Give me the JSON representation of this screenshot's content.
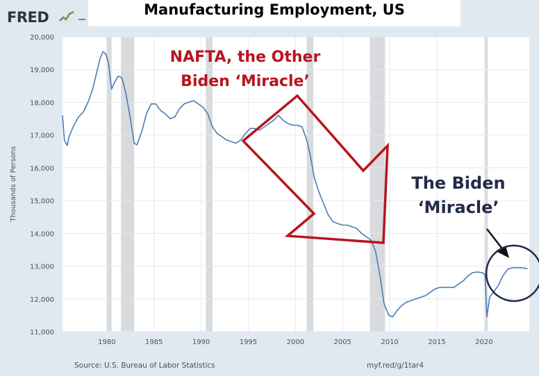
{
  "header": {
    "logo_text": "FRED",
    "title": "Manufacturing Employment, US"
  },
  "footer": {
    "source": "Source: U.S. Bureau of Labor Statistics",
    "link": "myf.red/g/1tar4"
  },
  "annotations": {
    "nafta_line1": "NAFTA, the Other",
    "nafta_line2": "Biden ‘Miracle’",
    "biden_line1": "The Biden",
    "biden_line2": "‘Miracle’"
  },
  "colors": {
    "line": "#4b7bb5",
    "recession": "#d8dadd",
    "plot_bg": "#ffffff",
    "page_bg": "#e1e9f0",
    "arrow_red": "#b8141e",
    "navy": "#1f2a44"
  },
  "chart_data": {
    "type": "line",
    "title": "Manufacturing Employment, US",
    "xlabel": "",
    "ylabel": "Thousands of Persons",
    "xlim": [
      1975.3,
      2024.8
    ],
    "ylim": [
      11000,
      20000
    ],
    "yticks": [
      11000,
      12000,
      13000,
      14000,
      15000,
      16000,
      17000,
      18000,
      19000,
      20000
    ],
    "ytick_labels": [
      "11,000",
      "12,000",
      "13,000",
      "14,000",
      "15,000",
      "16,000",
      "17,000",
      "18,000",
      "19,000",
      "20,000"
    ],
    "xticks": [
      1980,
      1985,
      1990,
      1995,
      2000,
      2005,
      2010,
      2015,
      2020
    ],
    "xtick_labels": [
      "1980",
      "1985",
      "1990",
      "1995",
      "2000",
      "2005",
      "2010",
      "2015",
      "2020"
    ],
    "grid": true,
    "recessions": [
      [
        1980.0,
        1980.5
      ],
      [
        1981.5,
        1982.9
      ],
      [
        1990.5,
        1991.2
      ],
      [
        2001.2,
        2001.9
      ],
      [
        2007.9,
        2009.5
      ],
      [
        2020.1,
        2020.4
      ]
    ],
    "series": [
      {
        "name": "Manufacturing Employment",
        "points": [
          [
            1975.3,
            17600
          ],
          [
            1975.5,
            16850
          ],
          [
            1975.8,
            16680
          ],
          [
            1976.0,
            16950
          ],
          [
            1976.5,
            17300
          ],
          [
            1977.0,
            17550
          ],
          [
            1977.5,
            17700
          ],
          [
            1978.0,
            18000
          ],
          [
            1978.5,
            18400
          ],
          [
            1979.0,
            19000
          ],
          [
            1979.3,
            19350
          ],
          [
            1979.6,
            19550
          ],
          [
            1979.9,
            19470
          ],
          [
            1980.2,
            19150
          ],
          [
            1980.5,
            18400
          ],
          [
            1980.8,
            18600
          ],
          [
            1981.2,
            18800
          ],
          [
            1981.6,
            18750
          ],
          [
            1982.0,
            18300
          ],
          [
            1982.5,
            17500
          ],
          [
            1982.9,
            16750
          ],
          [
            1983.2,
            16700
          ],
          [
            1983.7,
            17100
          ],
          [
            1984.2,
            17650
          ],
          [
            1984.7,
            17950
          ],
          [
            1985.2,
            17950
          ],
          [
            1985.7,
            17750
          ],
          [
            1986.2,
            17650
          ],
          [
            1986.7,
            17500
          ],
          [
            1987.2,
            17550
          ],
          [
            1987.7,
            17800
          ],
          [
            1988.2,
            17950
          ],
          [
            1988.7,
            18000
          ],
          [
            1989.2,
            18050
          ],
          [
            1989.7,
            17950
          ],
          [
            1990.2,
            17850
          ],
          [
            1990.7,
            17650
          ],
          [
            1991.2,
            17250
          ],
          [
            1991.7,
            17050
          ],
          [
            1992.2,
            16950
          ],
          [
            1992.7,
            16850
          ],
          [
            1993.2,
            16800
          ],
          [
            1993.7,
            16750
          ],
          [
            1994.2,
            16850
          ],
          [
            1994.7,
            17050
          ],
          [
            1995.2,
            17200
          ],
          [
            1995.7,
            17200
          ],
          [
            1996.2,
            17150
          ],
          [
            1996.7,
            17250
          ],
          [
            1997.2,
            17350
          ],
          [
            1997.7,
            17450
          ],
          [
            1998.2,
            17600
          ],
          [
            1998.7,
            17450
          ],
          [
            1999.2,
            17350
          ],
          [
            1999.7,
            17300
          ],
          [
            2000.2,
            17300
          ],
          [
            2000.7,
            17250
          ],
          [
            2001.2,
            16850
          ],
          [
            2001.6,
            16350
          ],
          [
            2002.0,
            15700
          ],
          [
            2002.5,
            15250
          ],
          [
            2003.0,
            14900
          ],
          [
            2003.5,
            14550
          ],
          [
            2004.0,
            14350
          ],
          [
            2004.5,
            14300
          ],
          [
            2005.0,
            14250
          ],
          [
            2005.5,
            14250
          ],
          [
            2006.0,
            14200
          ],
          [
            2006.5,
            14150
          ],
          [
            2007.0,
            14000
          ],
          [
            2007.5,
            13900
          ],
          [
            2008.0,
            13800
          ],
          [
            2008.5,
            13450
          ],
          [
            2009.0,
            12650
          ],
          [
            2009.4,
            11850
          ],
          [
            2009.9,
            11500
          ],
          [
            2010.3,
            11450
          ],
          [
            2010.8,
            11650
          ],
          [
            2011.3,
            11800
          ],
          [
            2011.8,
            11900
          ],
          [
            2012.3,
            11950
          ],
          [
            2012.8,
            12000
          ],
          [
            2013.3,
            12050
          ],
          [
            2013.8,
            12100
          ],
          [
            2014.3,
            12200
          ],
          [
            2014.8,
            12300
          ],
          [
            2015.3,
            12350
          ],
          [
            2015.8,
            12350
          ],
          [
            2016.3,
            12350
          ],
          [
            2016.8,
            12350
          ],
          [
            2017.3,
            12450
          ],
          [
            2017.8,
            12550
          ],
          [
            2018.3,
            12700
          ],
          [
            2018.8,
            12800
          ],
          [
            2019.3,
            12820
          ],
          [
            2019.8,
            12800
          ],
          [
            2020.1,
            12750
          ],
          [
            2020.3,
            11450
          ],
          [
            2020.6,
            12050
          ],
          [
            2021.0,
            12200
          ],
          [
            2021.5,
            12400
          ],
          [
            2022.0,
            12700
          ],
          [
            2022.5,
            12900
          ],
          [
            2023.0,
            12950
          ],
          [
            2023.5,
            12950
          ],
          [
            2024.0,
            12950
          ],
          [
            2024.6,
            12920
          ]
        ]
      }
    ]
  }
}
